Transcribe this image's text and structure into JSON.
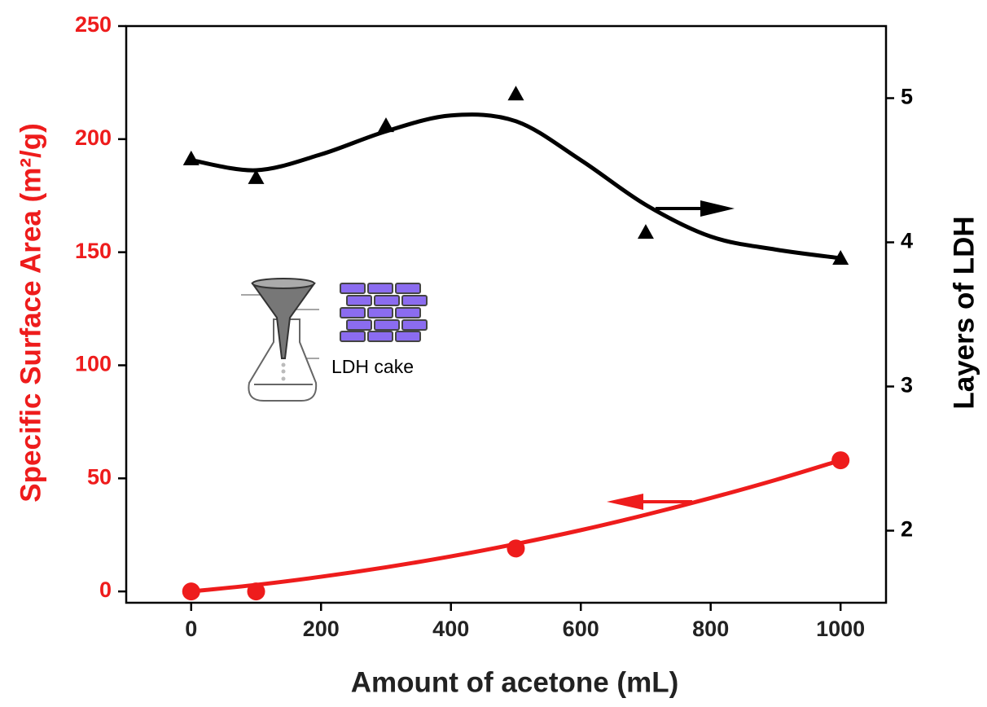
{
  "chart_data": {
    "type": "line",
    "x_label": "Amount of acetone (mL)",
    "y_label": "Specific Surface Area (m²/g)",
    "y2_label": "Layers of LDH",
    "inset_label": "LDH cake",
    "xlim": [
      -100,
      1070
    ],
    "xticks": [
      0,
      200,
      400,
      600,
      800,
      1000
    ],
    "ylim": [
      -5,
      250
    ],
    "yticks": [
      0,
      50,
      100,
      150,
      200,
      250
    ],
    "y2lim": [
      1.5,
      5.5
    ],
    "y2ticks": [
      2,
      3,
      4,
      5
    ],
    "series": [
      {
        "color": "#ee1c1c",
        "marker": "circle",
        "axis": "y",
        "x": [
          0,
          100,
          500,
          1000
        ],
        "values": [
          0,
          0,
          19,
          58
        ]
      },
      {
        "color": "#ee1c1c",
        "marker": "none",
        "axis": "y",
        "x": [
          0,
          100,
          200,
          300,
          400,
          500,
          600,
          700,
          800,
          900,
          1000
        ],
        "values": [
          0,
          2.9,
          6.5,
          10.7,
          15.5,
          21,
          27.1,
          33.9,
          41.3,
          49.3,
          58
        ]
      },
      {
        "color": "#000000",
        "marker": "triangle",
        "axis": "y2",
        "x": [
          0,
          100,
          300,
          500,
          700,
          1000
        ],
        "values": [
          4.58,
          4.45,
          4.81,
          5.03,
          4.07,
          3.89
        ]
      },
      {
        "color": "#000000",
        "marker": "none",
        "axis": "y2",
        "x": [
          0,
          100,
          200,
          300,
          400,
          500,
          600,
          700,
          800,
          900,
          1000
        ],
        "values": [
          4.57,
          4.5,
          4.61,
          4.77,
          4.88,
          4.84,
          4.57,
          4.26,
          4.04,
          3.95,
          3.89
        ]
      }
    ]
  }
}
